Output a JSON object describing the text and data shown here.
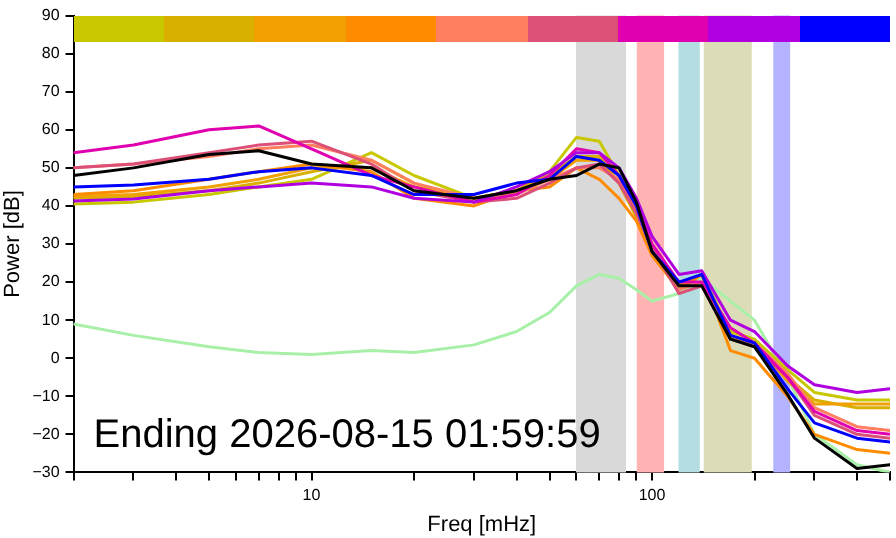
{
  "chart_data": {
    "type": "line",
    "xlabel": "Freq [mHz]",
    "ylabel": "Power [dB]",
    "log": "x",
    "x": [
      2,
      3,
      5,
      7,
      10,
      15,
      20,
      30,
      40,
      50,
      60,
      70,
      80,
      90,
      100,
      120,
      140,
      170,
      200,
      250,
      300,
      400,
      500
    ],
    "xlim": [
      2,
      500
    ],
    "xticks": [
      {
        "value": 2,
        "label": null
      },
      {
        "value": 3,
        "label": null
      },
      {
        "value": 4,
        "label": null
      },
      {
        "value": 5,
        "label": null
      },
      {
        "value": 6,
        "label": null
      },
      {
        "value": 7,
        "label": null
      },
      {
        "value": 8,
        "label": null
      },
      {
        "value": 9,
        "label": null
      },
      10,
      {
        "value": 20,
        "label": null
      },
      {
        "value": 30,
        "label": null
      },
      {
        "value": 40,
        "label": null
      },
      {
        "value": 50,
        "label": null
      },
      {
        "value": 60,
        "label": null
      },
      {
        "value": 70,
        "label": null
      },
      {
        "value": 80,
        "label": null
      },
      {
        "value": 90,
        "label": null
      },
      100,
      {
        "value": 200,
        "label": null
      },
      {
        "value": 300,
        "label": null
      },
      {
        "value": 400,
        "label": null
      },
      {
        "value": 500,
        "label": null
      }
    ],
    "ylim": [
      -30,
      90
    ],
    "yticks": [
      -30,
      -20,
      -10,
      0,
      10,
      20,
      30,
      40,
      50,
      60,
      70,
      80,
      90
    ],
    "grid": false,
    "legend": false,
    "marker": "none",
    "line_style": "solid",
    "bands": [
      {
        "axis": "x",
        "from": 59,
        "to": 85,
        "color": "#d9d9d9"
      },
      {
        "axis": "x",
        "from": 89,
        "to": 110,
        "color": "#ffb3b3"
      },
      {
        "axis": "x",
        "from": 118,
        "to": 140,
        "color": "#b3dde0"
      },
      {
        "axis": "x",
        "from": 140,
        "to": 199,
        "color": "#dcdcb8"
      },
      {
        "axis": "x",
        "from": 224,
        "to": 258,
        "color": "#b3b3ff"
      }
    ],
    "annotations": [
      "Ending 2026-08-15 01:59:59"
    ],
    "series": [
      {
        "color": "#a8f0a8",
        "values": [
          9,
          6,
          3,
          1.5,
          1,
          2,
          1.5,
          3.5,
          7,
          12,
          19,
          22,
          21,
          18,
          15,
          17,
          21,
          15,
          10,
          -5,
          -20,
          -28,
          -30
        ]
      },
      {
        "color": "#c8c800",
        "values": [
          40.5,
          41,
          43,
          45,
          47,
          54,
          48,
          42,
          44,
          49,
          58,
          57,
          48,
          38,
          28,
          19,
          22,
          7,
          5,
          -3,
          -9,
          -11,
          -11
        ]
      },
      {
        "color": "#d9b000",
        "values": [
          42,
          42.5,
          44,
          46,
          49,
          52,
          46,
          41,
          44,
          48,
          53,
          53,
          46,
          37,
          27,
          18,
          22,
          5,
          4,
          -5,
          -11,
          -13,
          -13
        ]
      },
      {
        "color": "#f0a000",
        "values": [
          42.5,
          43,
          45,
          47,
          50,
          50,
          45,
          42,
          44,
          47,
          52,
          52,
          46,
          38,
          28,
          19,
          22,
          6,
          4,
          -6,
          -12,
          -12,
          -12
        ]
      },
      {
        "color": "#ff8c00",
        "values": [
          43,
          44,
          47,
          49,
          51,
          49,
          42,
          40,
          44,
          45,
          50,
          47,
          42,
          36,
          27,
          18,
          22,
          2,
          0,
          -10,
          -20,
          -24,
          -25
        ]
      },
      {
        "color": "#ff7f60",
        "values": [
          50,
          51,
          53,
          55,
          56,
          52,
          46,
          42,
          43,
          47,
          50,
          50,
          47,
          38,
          30,
          18,
          20,
          6,
          4,
          -4,
          -13,
          -18,
          -19
        ]
      },
      {
        "color": "#dc5078",
        "values": [
          50,
          51,
          54,
          56,
          57,
          51,
          44,
          41,
          42,
          46,
          50,
          51,
          46,
          38,
          29,
          17,
          19,
          5,
          3,
          -5,
          -15,
          -20,
          -21
        ]
      },
      {
        "color": "#e000b0",
        "values": [
          54,
          56,
          60,
          61,
          55,
          48,
          45,
          41,
          43,
          48,
          55,
          54,
          48,
          40,
          30,
          20,
          20,
          8,
          4,
          -5,
          -14,
          -19,
          -20
        ]
      },
      {
        "color": "#b000e0",
        "values": [
          41.3,
          41.8,
          44,
          45,
          46,
          45,
          42,
          41,
          45,
          49,
          54,
          54,
          50,
          42,
          32,
          22,
          23,
          10,
          7,
          -2,
          -7,
          -9,
          -8
        ]
      },
      {
        "color": "#0000ff",
        "values": [
          45,
          45.5,
          47,
          49,
          50,
          48,
          43,
          43,
          46,
          47,
          53,
          52,
          48,
          40,
          28,
          20,
          22,
          6,
          4,
          -8,
          -17,
          -21,
          -22
        ]
      },
      {
        "color": "#000000",
        "values": [
          48,
          50,
          53.5,
          54.5,
          51,
          50,
          44,
          42,
          44,
          47,
          48,
          51,
          50,
          41,
          28,
          19,
          19,
          5,
          3,
          -9.5,
          -21,
          -29,
          -28
        ]
      }
    ]
  }
}
